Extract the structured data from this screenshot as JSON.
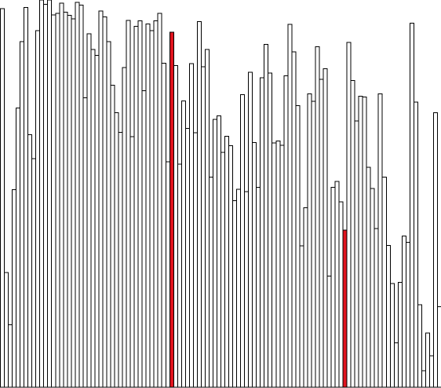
{
  "visualization": {
    "type": "bar-array",
    "value_max": 1.0,
    "bar_count": 112,
    "colors": {
      "background": "#ffffff",
      "bar_fill": "#ffffff",
      "bar_stroke": "#000000",
      "highlight_fill": "#e0141e",
      "highlight_stroke": "#000000"
    },
    "values": [
      0.978,
      0.296,
      0.161,
      0.51,
      0.721,
      0.893,
      0.981,
      0.652,
      0.59,
      0.921,
      1.0,
      0.989,
      1.0,
      0.961,
      0.966,
      0.992,
      0.969,
      0.96,
      0.951,
      0.994,
      0.987,
      0.747,
      0.913,
      0.872,
      0.857,
      0.972,
      0.956,
      0.893,
      0.78,
      0.709,
      0.658,
      0.826,
      0.947,
      0.647,
      0.932,
      0.946,
      0.766,
      0.938,
      0.921,
      0.946,
      0.966,
      0.837,
      0.582,
      0.917,
      0.831,
      0.576,
      0.739,
      0.668,
      0.836,
      0.657,
      0.944,
      0.828,
      0.872,
      0.543,
      0.692,
      0.701,
      0.607,
      0.648,
      0.624,
      0.482,
      0.511,
      0.756,
      0.505,
      0.813,
      0.632,
      0.516,
      0.799,
      0.885,
      0.811,
      0.631,
      0.636,
      0.625,
      0.804,
      0.937,
      0.866,
      0.727,
      0.365,
      0.464,
      0.758,
      0.738,
      0.879,
      0.795,
      0.823,
      0.287,
      0.516,
      0.531,
      0.479,
      0.406,
      0.89,
      0.792,
      0.688,
      0.752,
      0.749,
      0.568,
      0.513,
      0.41,
      0.758,
      0.543,
      0.366,
      0.268,
      0.115,
      0.271,
      0.39,
      0.374,
      0.94,
      0.736,
      0.213,
      0.043,
      0.14,
      0.081,
      0.709,
      0.208
    ],
    "highlighted_indices": [
      43,
      87
    ]
  }
}
